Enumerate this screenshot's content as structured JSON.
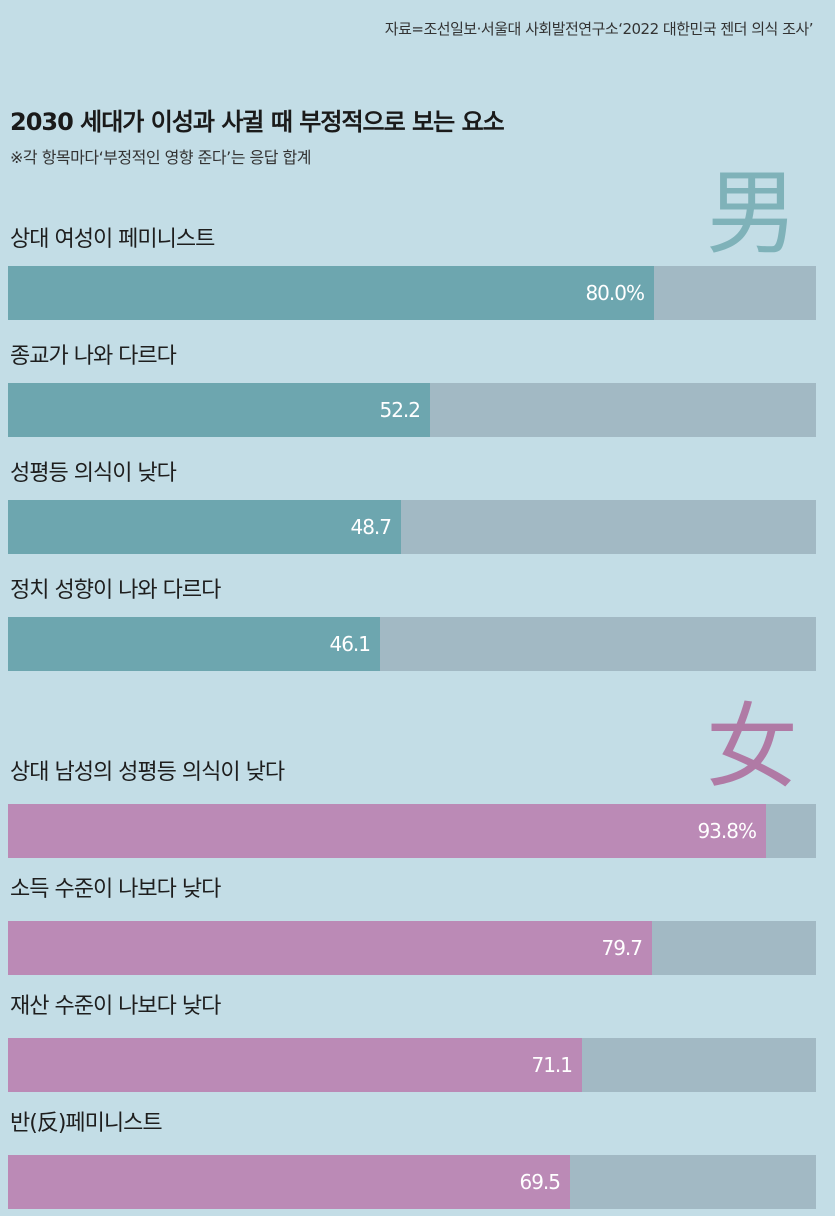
{
  "source": "자료=조선일보·서울대 사회발전연구소‘2022 대한민국 젠더 의식 조사’",
  "title": "2030 세대가 이성과 사귈 때 부정적으로 보는 요소",
  "subtitle": "※각 항목마다‘부정적인 영향 준다’는 응답 합계",
  "chart_data": {
    "type": "bar",
    "title": "2030 세대가 이성과 사귈 때 부정적으로 보는 요소",
    "subtitle": "※각 항목마다‘부정적인 영향 준다’는 응답 합계",
    "unit": "%",
    "xlim": [
      0,
      100
    ],
    "groups": [
      {
        "name": "男",
        "color": "#6da6af",
        "categories": [
          "상대 여성이 페미니스트",
          "종교가 나와 다르다",
          "성평등 의식이 낮다",
          "정치 성향이 나와 다르다"
        ],
        "values": [
          80.0,
          52.2,
          48.7,
          46.1
        ],
        "value_labels": [
          "80.0%",
          "52.2",
          "48.7",
          "46.1"
        ]
      },
      {
        "name": "女",
        "color": "#bb8ab6",
        "categories": [
          "상대 남성의 성평등 의식이 낮다",
          "소득 수준이 나보다 낮다",
          "재산 수준이 나보다 낮다",
          "반(反)페미니스트"
        ],
        "values": [
          93.8,
          79.7,
          71.1,
          69.5
        ],
        "value_labels": [
          "93.8%",
          "79.7",
          "71.1",
          "69.5"
        ]
      }
    ],
    "track_color": "#a2b9c4",
    "grid": false,
    "legend": "none"
  }
}
